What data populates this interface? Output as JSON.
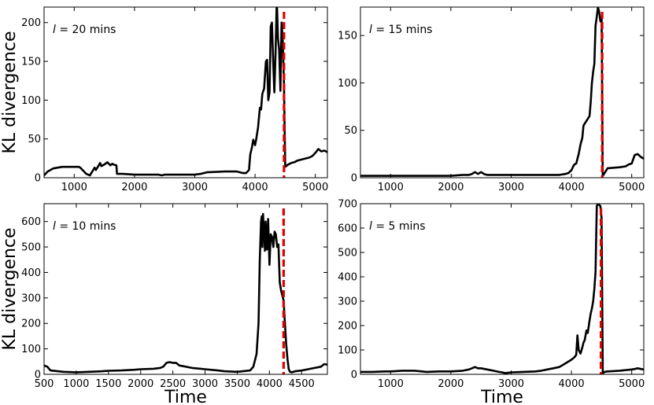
{
  "chart_data": [
    {
      "type": "line",
      "panel_label": "l = 20 mins",
      "panel_label_var": "l",
      "panel_label_rest": " = 20 mins",
      "xlim": [
        500,
        5200
      ],
      "ylim": [
        0,
        220
      ],
      "xticks": [
        1000,
        2000,
        3000,
        4000,
        5000
      ],
      "yticks": [
        0,
        50,
        100,
        150,
        200
      ],
      "ylabel": "KL divergence",
      "xlabel": "",
      "vline_x": 4480,
      "series": [
        {
          "x": [
            500,
            560,
            650,
            800,
            900,
            1000,
            1080,
            1100,
            1150,
            1200,
            1260,
            1300,
            1340,
            1360,
            1400,
            1430,
            1450,
            1500,
            1550,
            1600,
            1630,
            1650,
            1700,
            1710,
            1800,
            2000,
            2200,
            2300,
            2400,
            2450,
            2500,
            2800,
            3000,
            3100,
            3200,
            3500,
            3700,
            3750,
            3800,
            3850,
            3900,
            3920,
            3950,
            3970,
            4000,
            4020,
            4050,
            4080,
            4100,
            4120,
            4150,
            4180,
            4200,
            4220,
            4240,
            4260,
            4280,
            4300,
            4320,
            4340,
            4360,
            4380,
            4400,
            4420,
            4440,
            4460,
            4480,
            4500,
            4550,
            4600,
            4650,
            4700,
            4800,
            4900,
            4950,
            5000,
            5050,
            5100,
            5150,
            5200
          ],
          "y": [
            3,
            8,
            12,
            14,
            14,
            14,
            14,
            13,
            9,
            5,
            3,
            8,
            13,
            10,
            15,
            19,
            15,
            17,
            20,
            16,
            18,
            17,
            16,
            5,
            5,
            4,
            4,
            4,
            4,
            3,
            4,
            4,
            4,
            5,
            7,
            8,
            8,
            7,
            6,
            6,
            10,
            30,
            40,
            49,
            42,
            50,
            65,
            90,
            88,
            108,
            115,
            150,
            152,
            100,
            110,
            195,
            200,
            150,
            110,
            160,
            230,
            180,
            165,
            112,
            200,
            175,
            118,
            14,
            17,
            19,
            20,
            22,
            24,
            26,
            28,
            32,
            37,
            34,
            35,
            33
          ]
        }
      ]
    },
    {
      "type": "line",
      "panel_label": "l = 15 mins",
      "panel_label_var": "l",
      "panel_label_rest": " = 15 mins",
      "xlim": [
        500,
        5200
      ],
      "ylim": [
        0,
        180
      ],
      "xticks": [
        1000,
        2000,
        3000,
        4000,
        5000
      ],
      "yticks": [
        0,
        50,
        100,
        150
      ],
      "ylabel": "",
      "xlabel": "",
      "vline_x": 4510,
      "series": [
        {
          "x": [
            500,
            800,
            1000,
            1200,
            1500,
            1800,
            2000,
            2200,
            2300,
            2350,
            2400,
            2450,
            2500,
            2550,
            2600,
            2800,
            3000,
            3200,
            3500,
            3800,
            3900,
            3950,
            4000,
            4030,
            4050,
            4080,
            4100,
            4120,
            4150,
            4180,
            4200,
            4220,
            4250,
            4280,
            4300,
            4320,
            4340,
            4360,
            4380,
            4400,
            4420,
            4440,
            4460,
            4480,
            4500,
            4520,
            4560,
            4600,
            4800,
            4900,
            4950,
            5000,
            5050,
            5100,
            5150,
            5200
          ],
          "y": [
            2,
            2,
            2,
            2,
            2,
            2,
            2,
            3,
            3,
            4,
            6,
            4,
            6,
            4,
            3,
            3,
            3,
            3,
            3,
            3,
            4,
            5,
            8,
            12,
            14,
            15,
            20,
            25,
            35,
            42,
            55,
            57,
            60,
            63,
            65,
            80,
            100,
            112,
            120,
            160,
            170,
            180,
            175,
            165,
            168,
            2,
            6,
            10,
            11,
            12,
            14,
            15,
            24,
            25,
            22,
            20
          ]
        }
      ]
    },
    {
      "type": "line",
      "panel_label": "l = 10 mins",
      "panel_label_var": "l",
      "panel_label_rest": " = 10 mins",
      "xlim": [
        500,
        4900
      ],
      "ylim": [
        0,
        670
      ],
      "xticks": [
        500,
        1000,
        1500,
        2000,
        2500,
        3000,
        3500,
        4000,
        4500
      ],
      "yticks": [
        0,
        100,
        200,
        300,
        400,
        500,
        600
      ],
      "ylabel": "KL divergence",
      "xlabel": "Time",
      "vline_x": 4220,
      "series": [
        {
          "x": [
            500,
            550,
            600,
            800,
            1000,
            1200,
            1400,
            1500,
            1700,
            1900,
            2000,
            2200,
            2300,
            2350,
            2400,
            2450,
            2500,
            2550,
            2600,
            2800,
            3000,
            3200,
            3300,
            3500,
            3700,
            3750,
            3800,
            3830,
            3850,
            3870,
            3880,
            3890,
            3900,
            3910,
            3920,
            3930,
            3940,
            3950,
            3960,
            3970,
            3980,
            4000,
            4020,
            4040,
            4060,
            4080,
            4100,
            4120,
            4140,
            4160,
            4180,
            4200,
            4220,
            4240,
            4260,
            4280,
            4300,
            4320,
            4350,
            4400,
            4500,
            4600,
            4700,
            4800,
            4850,
            4900
          ],
          "y": [
            35,
            30,
            15,
            10,
            8,
            10,
            12,
            14,
            15,
            18,
            20,
            22,
            25,
            30,
            45,
            48,
            45,
            45,
            35,
            25,
            20,
            15,
            12,
            10,
            15,
            30,
            80,
            200,
            450,
            600,
            620,
            500,
            630,
            580,
            560,
            485,
            600,
            520,
            490,
            560,
            610,
            430,
            550,
            540,
            500,
            560,
            550,
            500,
            510,
            360,
            330,
            310,
            290,
            200,
            120,
            60,
            20,
            10,
            8,
            12,
            15,
            20,
            25,
            30,
            40,
            38
          ]
        }
      ]
    },
    {
      "type": "line",
      "panel_label": "l = 5 mins",
      "panel_label_var": "l",
      "panel_label_rest": " = 5 mins",
      "xlim": [
        500,
        5200
      ],
      "ylim": [
        0,
        700
      ],
      "xticks": [
        1000,
        2000,
        3000,
        4000,
        5000
      ],
      "yticks": [
        0,
        100,
        200,
        300,
        400,
        500,
        600,
        700
      ],
      "ylabel": "",
      "xlabel": "Time",
      "vline_x": 4490,
      "series": [
        {
          "x": [
            500,
            700,
            900,
            1000,
            1200,
            1400,
            1600,
            1800,
            2000,
            2200,
            2300,
            2350,
            2400,
            2450,
            2500,
            2600,
            2800,
            2850,
            2900,
            3000,
            3200,
            3400,
            3500,
            3600,
            3700,
            3800,
            3900,
            4000,
            4050,
            4080,
            4100,
            4120,
            4150,
            4180,
            4200,
            4220,
            4250,
            4270,
            4300,
            4320,
            4340,
            4360,
            4380,
            4400,
            4420,
            4440,
            4460,
            4480,
            4500,
            4520,
            4550,
            4600,
            4800,
            5000,
            5050,
            5100,
            5150,
            5200
          ],
          "y": [
            10,
            10,
            12,
            12,
            15,
            15,
            10,
            12,
            12,
            15,
            20,
            25,
            30,
            25,
            25,
            20,
            10,
            8,
            5,
            8,
            10,
            12,
            15,
            20,
            25,
            30,
            45,
            60,
            70,
            80,
            160,
            100,
            85,
            110,
            130,
            140,
            180,
            170,
            220,
            250,
            270,
            300,
            350,
            420,
            690,
            700,
            695,
            690,
            640,
            5,
            10,
            12,
            15,
            20,
            22,
            25,
            22,
            20
          ]
        }
      ]
    }
  ]
}
